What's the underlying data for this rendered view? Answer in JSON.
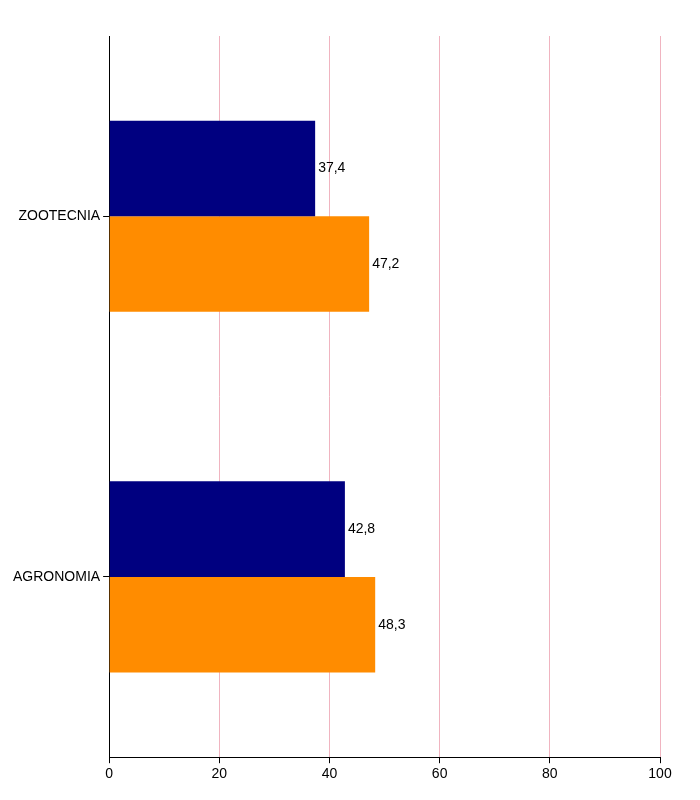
{
  "chart_data": {
    "type": "bar",
    "orientation": "horizontal",
    "categories": [
      "ZOOTECNIA",
      "AGRONOMIA"
    ],
    "series": [
      {
        "color": "#000080",
        "values": [
          37.4,
          42.8
        ],
        "value_labels": [
          "37,4",
          "42,8"
        ]
      },
      {
        "color": "#ff8c00",
        "values": [
          47.2,
          48.3
        ],
        "value_labels": [
          "47,2",
          "48,3"
        ]
      }
    ],
    "xlim": [
      0,
      100
    ],
    "xticks": [
      0,
      20,
      40,
      60,
      80,
      100
    ],
    "grid": true,
    "data_labels": true
  }
}
